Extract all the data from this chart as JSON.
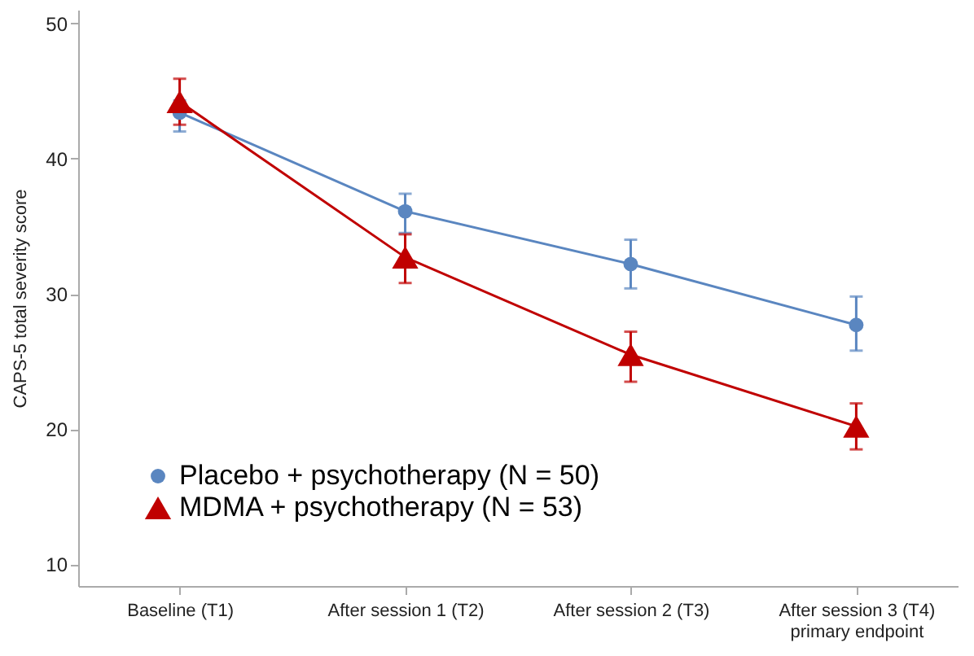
{
  "chart_data": {
    "type": "line",
    "ylabel": "CAPS-5 total severity score",
    "categories": [
      "Baseline (T1)",
      "After session 1 (T2)",
      "After session 2 (T3)",
      "After session 3 (T4)\nprimary endpoint"
    ],
    "series": [
      {
        "name": "Placebo + psychotherapy (N = 50)",
        "color": "#5a86c0",
        "marker": "circle",
        "values": [
          43.4,
          36.1,
          32.2,
          27.7
        ],
        "errors": [
          [
            42.0,
            44.3
          ],
          [
            34.5,
            37.4
          ],
          [
            30.4,
            34.0
          ],
          [
            25.8,
            29.8
          ]
        ]
      },
      {
        "name": "MDMA + psychotherapy (N = 53)",
        "color": "#c00000",
        "marker": "triangle",
        "values": [
          44.2,
          32.7,
          25.5,
          20.2
        ],
        "errors": [
          [
            42.5,
            45.9
          ],
          [
            30.8,
            34.4
          ],
          [
            23.5,
            27.2
          ],
          [
            18.5,
            21.9
          ]
        ]
      }
    ],
    "ylim": [
      8.4,
      51
    ],
    "yticks": [
      10,
      20,
      30,
      40,
      50
    ],
    "grid": false,
    "legend": "bottom left"
  }
}
